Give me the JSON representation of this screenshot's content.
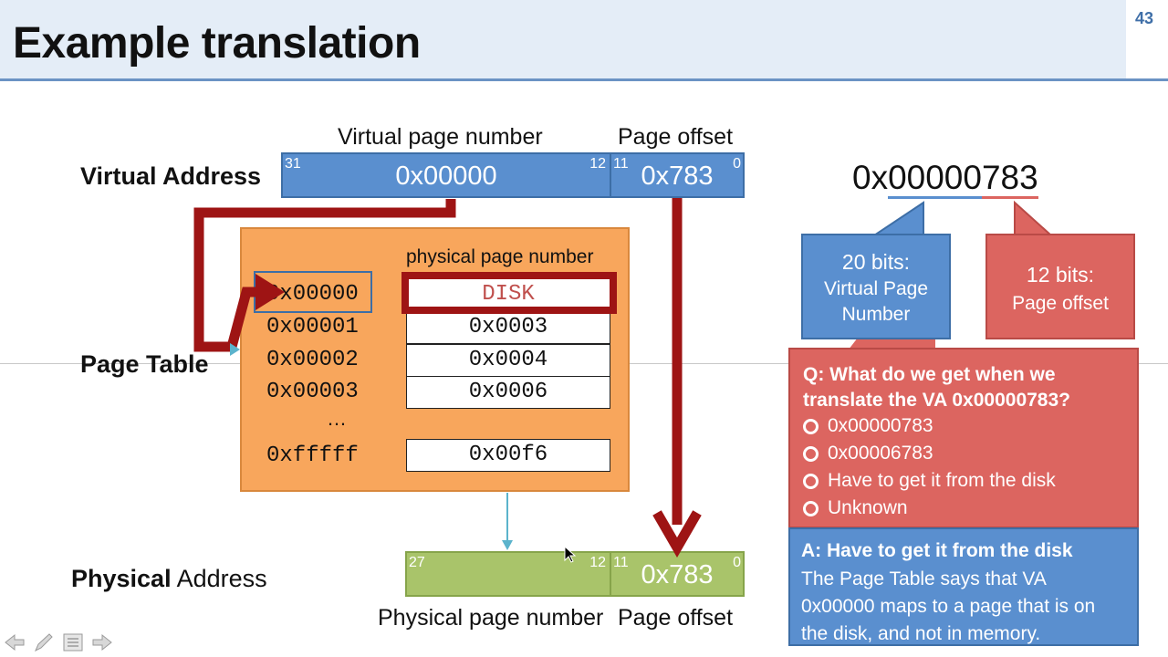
{
  "slide": {
    "title": "Example translation",
    "number": "43"
  },
  "virtual_address": {
    "label": "Virtual Address",
    "vpn_header": "Virtual page number",
    "offset_header": "Page offset",
    "vpn_value": "0x00000",
    "offset_value": "0x783",
    "bits": {
      "vpn_high": "31",
      "vpn_low": "12",
      "off_high": "11",
      "off_low": "0"
    }
  },
  "page_table": {
    "label": "Page Table",
    "column_header": "physical page number",
    "rows": [
      {
        "index": "0x00000",
        "ppn": "DISK"
      },
      {
        "index": "0x00001",
        "ppn": "0x0003"
      },
      {
        "index": "0x00002",
        "ppn": "0x0004"
      },
      {
        "index": "0x00003",
        "ppn": "0x0006"
      }
    ],
    "ellipsis": "…",
    "last_row": {
      "index": "0xfffff",
      "ppn": "0x00f6"
    }
  },
  "physical_address": {
    "label_bold": "Physical",
    "label_rest": " Address",
    "ppn_footer": "Physical page number",
    "offset_footer": "Page offset",
    "offset_value": "0x783",
    "bits": {
      "ppn_high": "27",
      "ppn_low": "12",
      "off_high": "11",
      "off_low": "0"
    }
  },
  "va_hex": {
    "prefix": "0x",
    "vpn_part": "00000",
    "offset_part": "783"
  },
  "callouts": {
    "vpn": {
      "line1": "20 bits:",
      "line2": "Virtual Page",
      "line3": "Number"
    },
    "offset": {
      "line1": "12 bits:",
      "line2": "Page offset"
    }
  },
  "question": {
    "text": "Q: What do we get when we translate the VA 0x00000783?",
    "options": [
      "0x00000783",
      "0x00006783",
      "Have to get it from the disk",
      "Unknown"
    ]
  },
  "answer": {
    "title": "A: Have to get it from the disk",
    "lines": [
      "The Page Table says that VA",
      "0x00000 maps to a page that is on",
      "the disk, and not in memory."
    ]
  },
  "colors": {
    "blue": "#5a8fcf",
    "red": "#dc6560",
    "orange": "#f8a65c",
    "green": "#a9c46a",
    "arrow_red": "#9e1414",
    "teal_arrow": "#5bb3cc"
  },
  "nav_icons": [
    "arrow-left-icon",
    "pen-icon",
    "menu-icon",
    "arrow-right-icon"
  ]
}
